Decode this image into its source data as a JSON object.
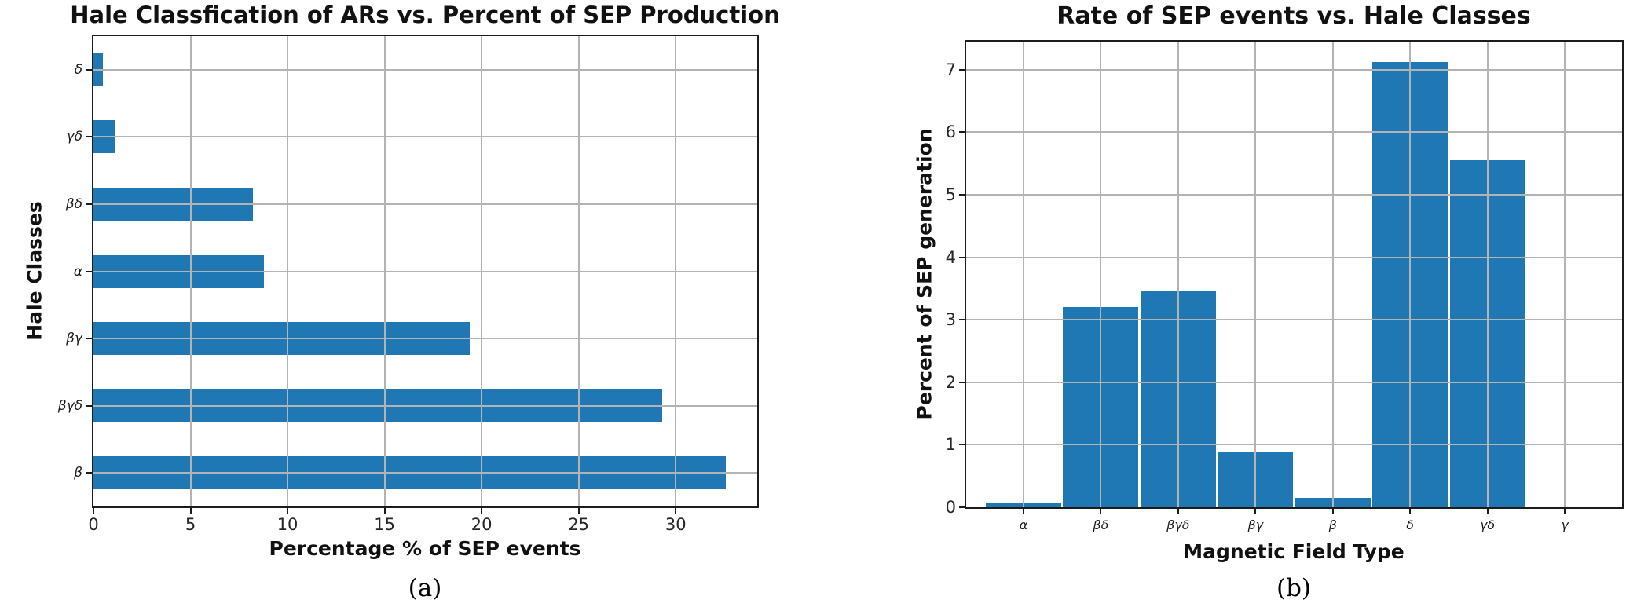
{
  "figure": {
    "panels": [
      {
        "caption": "(a)"
      },
      {
        "caption": "(b)"
      }
    ]
  },
  "colors": {
    "bar": "#1f77b4",
    "grid": "#b3b3b3",
    "spine": "#1c1c1c"
  },
  "chart_data": [
    {
      "type": "bar",
      "orientation": "horizontal",
      "title": "Hale Classfication of ARs vs. Percent of SEP Production",
      "xlabel": "Percentage % of SEP events",
      "ylabel": "Hale Classes",
      "categories": [
        "δ",
        "γδ",
        "βδ",
        "α",
        "βγ",
        "βγδ",
        "β"
      ],
      "values": [
        0.5,
        1.1,
        8.2,
        8.8,
        19.4,
        29.3,
        32.6
      ],
      "xticks": [
        0,
        5,
        10,
        15,
        20,
        25,
        30
      ],
      "xlim": [
        0,
        34.2
      ],
      "grid": true,
      "legend": "none",
      "bar_color": "#1f77b4"
    },
    {
      "type": "bar",
      "orientation": "vertical",
      "title": "Rate of SEP events vs. Hale Classes",
      "xlabel": "Magnetic Field Type",
      "ylabel": "Percent of SEP generation",
      "categories": [
        "α",
        "βδ",
        "βγδ",
        "βγ",
        "β",
        "δ",
        "γδ",
        "γ"
      ],
      "values": [
        0.08,
        3.2,
        3.47,
        0.88,
        0.15,
        7.12,
        5.55,
        0
      ],
      "yticks": [
        0,
        1,
        2,
        3,
        4,
        5,
        6,
        7
      ],
      "ylim": [
        0,
        7.45
      ],
      "grid": true,
      "legend": "none",
      "bar_color": "#1f77b4"
    }
  ]
}
